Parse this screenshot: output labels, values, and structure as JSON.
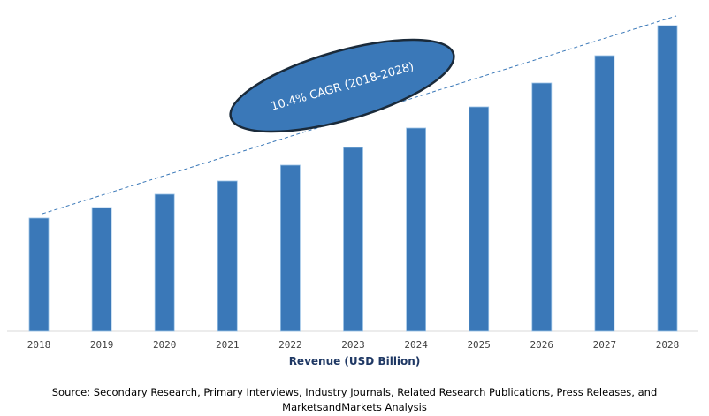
{
  "chart_data": {
    "type": "bar",
    "title": "",
    "xlabel": "Revenue (USD Billion)",
    "ylabel": "",
    "categories": [
      "2018",
      "2019",
      "2020",
      "2021",
      "2022",
      "2023",
      "2024",
      "2025",
      "2026",
      "2027",
      "2028"
    ],
    "values": [
      12.8,
      14.0,
      15.5,
      17.0,
      18.8,
      20.8,
      23.0,
      25.4,
      28.1,
      31.2,
      34.6
    ],
    "ylim": [
      0,
      36
    ],
    "grid": false,
    "y_axis_shown": false,
    "bar_color": "#3a78b8",
    "trend_line": {
      "style": "dashed",
      "color": "#3a78b8"
    },
    "annotation": {
      "text": "10.4% CAGR (2018-2028)",
      "shape": "ellipse",
      "fill": "#3a78b8",
      "border": "#1a2a3a"
    }
  },
  "source": {
    "line1": "Source: Secondary Research, Primary Interviews, Industry Journals, Related Research Publications, Press Releases, and",
    "line2": "MarketsandMarkets Analysis"
  }
}
